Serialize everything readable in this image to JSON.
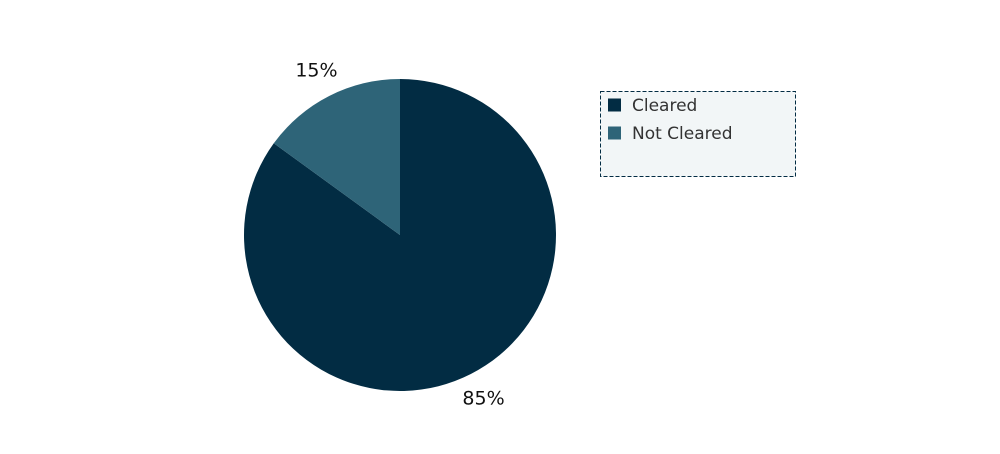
{
  "chart_data": {
    "type": "pie",
    "categories": [
      "Cleared",
      "Not Cleared"
    ],
    "values": [
      85,
      15
    ],
    "value_labels": [
      "85%",
      "15%"
    ],
    "colors": [
      "#022c43",
      "#2e6478"
    ]
  }
}
